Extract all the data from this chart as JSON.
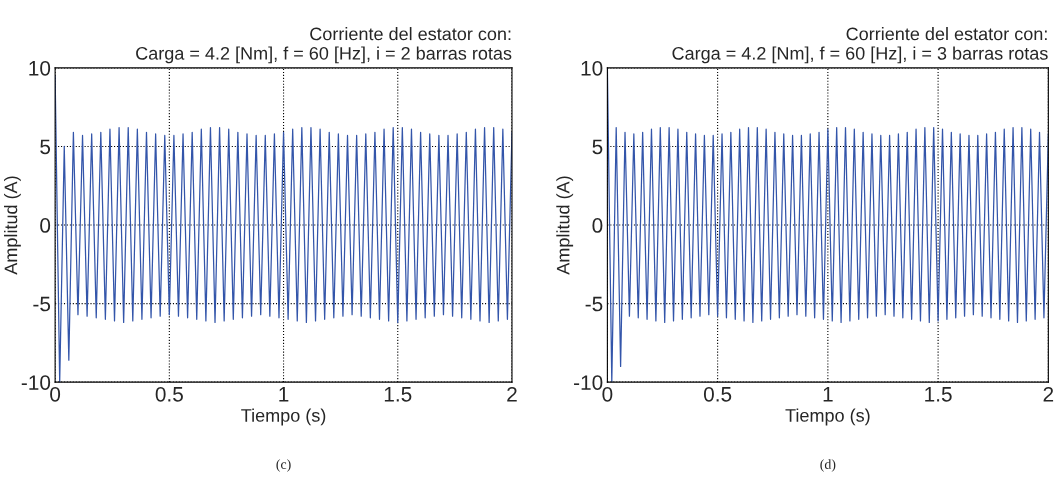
{
  "chart_data": [
    {
      "type": "line",
      "title": "Corriente del estator con:\nCarga = 4.2 [Nm], f = 60 [Hz], i = 2 barras rotas",
      "xlabel": "Tiempo (s)",
      "ylabel": "Amplitud (A)",
      "x": [
        0,
        0.02,
        0.04,
        0.06,
        0.08,
        0.1,
        0.12,
        0.14,
        0.16,
        0.18,
        0.2,
        0.22,
        0.24,
        0.26,
        0.28,
        0.3,
        0.32,
        0.34,
        0.36,
        0.38,
        0.4,
        0.42,
        0.44,
        0.46,
        0.48,
        0.5,
        0.52,
        0.54,
        0.56,
        0.58,
        0.6,
        0.62,
        0.64,
        0.66,
        0.68,
        0.7,
        0.72,
        0.74,
        0.76,
        0.78,
        0.8,
        0.82,
        0.84,
        0.86,
        0.88,
        0.9,
        0.92,
        0.94,
        0.96,
        0.98,
        1,
        1.02,
        1.04,
        1.06,
        1.08,
        1.1,
        1.12,
        1.14,
        1.16,
        1.18,
        1.2,
        1.22,
        1.24,
        1.26,
        1.28,
        1.3,
        1.32,
        1.34,
        1.36,
        1.38,
        1.4,
        1.42,
        1.44,
        1.46,
        1.48,
        1.5,
        1.52,
        1.54,
        1.56,
        1.58,
        1.6,
        1.62,
        1.64,
        1.66,
        1.68,
        1.7,
        1.72,
        1.74,
        1.76,
        1.78,
        1.8,
        1.82,
        1.84,
        1.86,
        1.88,
        1.9,
        1.92,
        1.94,
        1.96,
        1.98,
        2
      ],
      "series": [
        {
          "color": "#3355aa",
          "values": [
            9.5,
            -10,
            5,
            -8.6,
            5.9,
            -5.7,
            5.7,
            -5.8,
            5.8,
            -5.9,
            5.9,
            -6,
            6.1,
            -6.1,
            6.2,
            -6.2,
            6.2,
            -6.1,
            6.1,
            -6,
            5.9,
            -5.9,
            5.8,
            -5.8,
            5.7,
            -5.7,
            5.7,
            -5.8,
            5.8,
            -5.9,
            5.9,
            -6,
            6.1,
            -6.1,
            6.2,
            -6.2,
            6.2,
            -6.1,
            6.1,
            -6,
            5.9,
            -5.9,
            5.8,
            -5.8,
            5.7,
            -5.7,
            5.7,
            -5.8,
            5.8,
            -5.9,
            5.9,
            -6,
            6.1,
            -6.1,
            6.2,
            -6.2,
            6.2,
            -6.1,
            6.1,
            -6,
            5.9,
            -5.9,
            5.8,
            -5.8,
            5.7,
            -5.7,
            5.7,
            -5.8,
            5.8,
            -5.9,
            5.9,
            -6,
            6.1,
            -6.1,
            6.2,
            -6.2,
            6.2,
            -6.1,
            6.1,
            -6,
            5.9,
            -5.9,
            5.8,
            -5.8,
            5.7,
            -5.7,
            5.7,
            -5.8,
            5.8,
            -5.9,
            5.9,
            -6,
            6.1,
            -6.1,
            6.2,
            -6.2,
            6.2,
            -6.1,
            6.1,
            -6,
            5.9
          ]
        }
      ],
      "xlim": [
        0,
        2
      ],
      "ylim": [
        -10,
        10
      ],
      "xticks": [
        0,
        0.5,
        1,
        1.5,
        2
      ],
      "yticks": [
        -10,
        -5,
        0,
        5,
        10
      ],
      "grid": true,
      "annotations": [
        "(c)"
      ]
    },
    {
      "type": "line",
      "title": "Corriente del estator con:\nCarga = 4.2 [Nm], f = 60 [Hz], i = 3 barras rotas",
      "xlabel": "Tiempo (s)",
      "ylabel": "Amplitud (A)",
      "x": [
        0,
        0.02,
        0.04,
        0.06,
        0.08,
        0.1,
        0.12,
        0.14,
        0.16,
        0.18,
        0.2,
        0.22,
        0.24,
        0.26,
        0.28,
        0.3,
        0.32,
        0.34,
        0.36,
        0.38,
        0.4,
        0.42,
        0.44,
        0.46,
        0.48,
        0.5,
        0.52,
        0.54,
        0.56,
        0.58,
        0.6,
        0.62,
        0.64,
        0.66,
        0.68,
        0.7,
        0.72,
        0.74,
        0.76,
        0.78,
        0.8,
        0.82,
        0.84,
        0.86,
        0.88,
        0.9,
        0.92,
        0.94,
        0.96,
        0.98,
        1,
        1.02,
        1.04,
        1.06,
        1.08,
        1.1,
        1.12,
        1.14,
        1.16,
        1.18,
        1.2,
        1.22,
        1.24,
        1.26,
        1.28,
        1.3,
        1.32,
        1.34,
        1.36,
        1.38,
        1.4,
        1.42,
        1.44,
        1.46,
        1.48,
        1.5,
        1.52,
        1.54,
        1.56,
        1.58,
        1.6,
        1.62,
        1.64,
        1.66,
        1.68,
        1.7,
        1.72,
        1.74,
        1.76,
        1.78,
        1.8,
        1.82,
        1.84,
        1.86,
        1.88,
        1.9,
        1.92,
        1.94,
        1.96,
        1.98,
        2
      ],
      "series": [
        {
          "color": "#3355aa",
          "values": [
            10,
            -10,
            6.2,
            -9,
            5.9,
            -5.8,
            5.8,
            -5.9,
            5.9,
            -6,
            6.1,
            -6.1,
            6.2,
            -6.2,
            6.2,
            -6.1,
            6.1,
            -6,
            5.9,
            -5.9,
            5.8,
            -5.8,
            5.7,
            -5.7,
            5.7,
            -5.8,
            5.8,
            -5.9,
            5.9,
            -6,
            6.1,
            -6.1,
            6.2,
            -6.2,
            6.2,
            -6.1,
            6.1,
            -6,
            5.9,
            -5.9,
            5.8,
            -5.8,
            5.7,
            -5.7,
            5.7,
            -5.8,
            5.8,
            -5.9,
            5.9,
            -6,
            6.1,
            -6.1,
            6.2,
            -6.2,
            6.2,
            -6.1,
            6.1,
            -6,
            5.9,
            -5.9,
            5.8,
            -5.8,
            5.7,
            -5.7,
            5.7,
            -5.8,
            5.8,
            -5.9,
            5.9,
            -6,
            6.1,
            -6.1,
            6.2,
            -6.2,
            6.2,
            -6.1,
            6.1,
            -6,
            5.9,
            -5.9,
            5.8,
            -5.8,
            5.7,
            -5.7,
            5.7,
            -5.8,
            5.8,
            -5.9,
            5.9,
            -6,
            6.1,
            -6.1,
            6.2,
            -6.2,
            6.2,
            -6.1,
            6.1,
            -6,
            5.9,
            -5.9,
            5.8
          ]
        }
      ],
      "xlim": [
        0,
        2
      ],
      "ylim": [
        -10,
        10
      ],
      "xticks": [
        0,
        0.5,
        1,
        1.5,
        2
      ],
      "yticks": [
        -10,
        -5,
        0,
        5,
        10
      ],
      "grid": true,
      "annotations": [
        "(d)"
      ]
    }
  ]
}
